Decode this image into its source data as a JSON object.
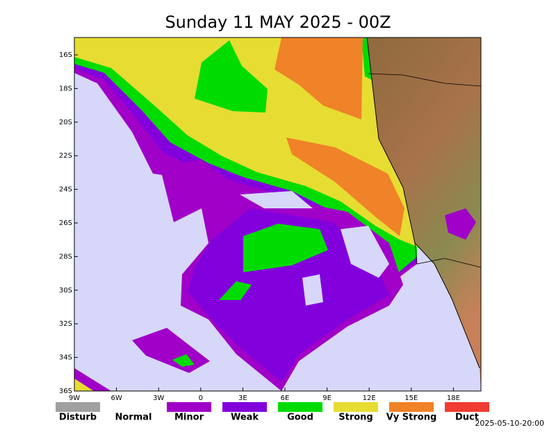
{
  "title": "Sunday 11 MAY 2025 - 00Z",
  "x_labels": [
    "9W",
    "6W",
    "3W",
    "0",
    "3E",
    "6E",
    "9E",
    "12E",
    "15E",
    "18E"
  ],
  "y_labels": [
    "16S",
    "18S",
    "20S",
    "22S",
    "24S",
    "26S",
    "28S",
    "30S",
    "32S",
    "34S",
    "36S"
  ],
  "legend": [
    {
      "label": "Disturb",
      "color": "#a0a0a0"
    },
    {
      "label": "Normal",
      "color": "#d7d7fa"
    },
    {
      "label": "Minor",
      "color": "#a000c8"
    },
    {
      "label": "Weak",
      "color": "#8200dc"
    },
    {
      "label": "Good",
      "color": "#00dc00"
    },
    {
      "label": "Strong",
      "color": "#e6dc32"
    },
    {
      "label": "Vy Strong",
      "color": "#f08228"
    },
    {
      "label": "Duct",
      "color": "#f03c32"
    }
  ],
  "timestamp": "2025-05-10-20:00"
}
